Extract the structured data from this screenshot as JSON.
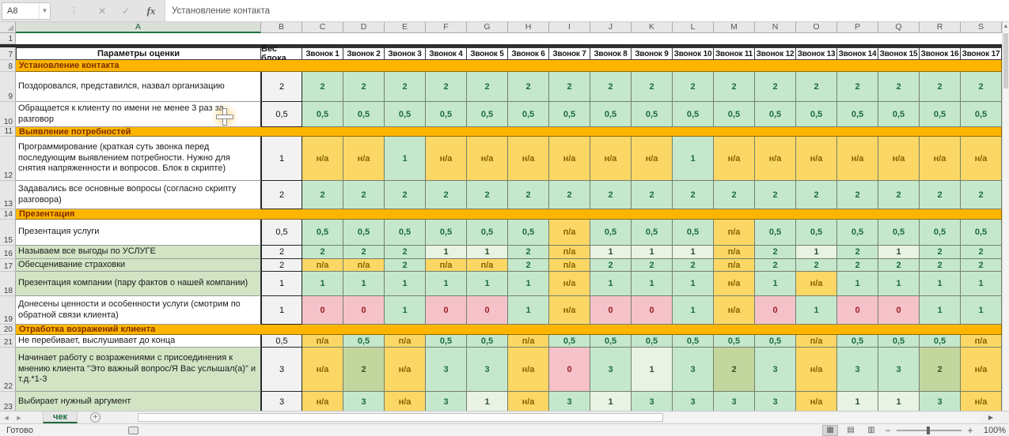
{
  "formula_bar": {
    "name_box": "A8",
    "cancel": "✕",
    "enter": "✓",
    "fx": "fx",
    "formula": "Установление контакта"
  },
  "sheet": {
    "column_letters": [
      "A",
      "B",
      "C",
      "D",
      "E",
      "F",
      "G",
      "H",
      "I",
      "J",
      "K",
      "L",
      "M",
      "N",
      "O",
      "P",
      "Q",
      "R",
      "S"
    ],
    "header": {
      "num": "7",
      "params": "Параметры оценки",
      "weight": "Вес блока",
      "calls": [
        "Звонок 1",
        "Звонок 2",
        "Звонок 3",
        "Звонок 4",
        "Звонок 5",
        "Звонок 6",
        "Звонок 7",
        "Звонок 8",
        "Звонок 9",
        "Звонок 10",
        "Звонок 11",
        "Звонок 12",
        "Звонок 13",
        "Звонок 14",
        "Звонок 15",
        "Звонок 16",
        "Звонок 17"
      ]
    },
    "first_row_num": "1",
    "rows": [
      {
        "num": "8",
        "type": "section",
        "label": "Установление контакта"
      },
      {
        "num": "9",
        "type": "item",
        "label": "Поздоровался, представился, назвал организацию",
        "label_bg": "white",
        "weight": "2",
        "values": [
          [
            "2",
            "g"
          ],
          [
            "2",
            "g"
          ],
          [
            "2",
            "g"
          ],
          [
            "2",
            "g"
          ],
          [
            "2",
            "g"
          ],
          [
            "2",
            "g"
          ],
          [
            "2",
            "g"
          ],
          [
            "2",
            "g"
          ],
          [
            "2",
            "g"
          ],
          [
            "2",
            "g"
          ],
          [
            "2",
            "g"
          ],
          [
            "2",
            "g"
          ],
          [
            "2",
            "g"
          ],
          [
            "2",
            "g"
          ],
          [
            "2",
            "g"
          ],
          [
            "2",
            "g"
          ],
          [
            "2",
            "g"
          ]
        ]
      },
      {
        "num": "10",
        "type": "item",
        "label": "Обращается к клиенту по имени не менее 3 раз  за разговор",
        "label_bg": "white",
        "weight": "0,5",
        "values": [
          [
            "0,5",
            "g"
          ],
          [
            "0,5",
            "g"
          ],
          [
            "0,5",
            "g"
          ],
          [
            "0,5",
            "g"
          ],
          [
            "0,5",
            "g"
          ],
          [
            "0,5",
            "g"
          ],
          [
            "0,5",
            "g"
          ],
          [
            "0,5",
            "g"
          ],
          [
            "0,5",
            "g"
          ],
          [
            "0,5",
            "g"
          ],
          [
            "0,5",
            "g"
          ],
          [
            "0,5",
            "g"
          ],
          [
            "0,5",
            "g"
          ],
          [
            "0,5",
            "g"
          ],
          [
            "0,5",
            "g"
          ],
          [
            "0,5",
            "g"
          ],
          [
            "0,5",
            "g"
          ]
        ]
      },
      {
        "num": "11",
        "type": "section",
        "label": "Выявление потребностей"
      },
      {
        "num": "12",
        "type": "item",
        "label": "Программирование (краткая суть звонка перед последующим выявлением потребности. Нужно для снятия напряженности и вопросов. Блок в скрипте)",
        "label_bg": "white",
        "weight": "1",
        "values": [
          [
            "н/а",
            "y"
          ],
          [
            "н/а",
            "y"
          ],
          [
            "1",
            "g"
          ],
          [
            "н/а",
            "y"
          ],
          [
            "н/а",
            "y"
          ],
          [
            "н/а",
            "y"
          ],
          [
            "н/а",
            "y"
          ],
          [
            "н/а",
            "y"
          ],
          [
            "н/а",
            "y"
          ],
          [
            "1",
            "g"
          ],
          [
            "н/а",
            "y"
          ],
          [
            "н/а",
            "y"
          ],
          [
            "н/а",
            "y"
          ],
          [
            "н/а",
            "y"
          ],
          [
            "н/а",
            "y"
          ],
          [
            "н/а",
            "y"
          ],
          [
            "н/а",
            "y"
          ]
        ]
      },
      {
        "num": "13",
        "type": "item",
        "label": "Задавались все основные вопросы (согласно скрипту разговора)",
        "label_bg": "white",
        "weight": "2",
        "values": [
          [
            "2",
            "g"
          ],
          [
            "2",
            "g"
          ],
          [
            "2",
            "g"
          ],
          [
            "2",
            "g"
          ],
          [
            "2",
            "g"
          ],
          [
            "2",
            "g"
          ],
          [
            "2",
            "g"
          ],
          [
            "2",
            "g"
          ],
          [
            "2",
            "g"
          ],
          [
            "2",
            "g"
          ],
          [
            "2",
            "g"
          ],
          [
            "2",
            "g"
          ],
          [
            "2",
            "g"
          ],
          [
            "2",
            "g"
          ],
          [
            "2",
            "g"
          ],
          [
            "2",
            "g"
          ],
          [
            "2",
            "g"
          ]
        ]
      },
      {
        "num": "14",
        "type": "section",
        "label": "Презентация"
      },
      {
        "num": "15",
        "type": "item",
        "label": "Презентация услуги",
        "label_bg": "white",
        "weight": "0,5",
        "values": [
          [
            "0,5",
            "g"
          ],
          [
            "0,5",
            "g"
          ],
          [
            "0,5",
            "g"
          ],
          [
            "0,5",
            "g"
          ],
          [
            "0,5",
            "g"
          ],
          [
            "0,5",
            "g"
          ],
          [
            "п/а",
            "y"
          ],
          [
            "0,5",
            "g"
          ],
          [
            "0,5",
            "g"
          ],
          [
            "0,5",
            "g"
          ],
          [
            "п/а",
            "y"
          ],
          [
            "0,5",
            "g"
          ],
          [
            "0,5",
            "g"
          ],
          [
            "0,5",
            "g"
          ],
          [
            "0,5",
            "g"
          ],
          [
            "0,5",
            "g"
          ],
          [
            "0,5",
            "g"
          ]
        ]
      },
      {
        "num": "16",
        "type": "item",
        "label": "Называем все выгоды по УСЛУГЕ",
        "label_bg": "green",
        "weight": "2",
        "values": [
          [
            "2",
            "g"
          ],
          [
            "2",
            "g"
          ],
          [
            "2",
            "g"
          ],
          [
            "1",
            "l"
          ],
          [
            "1",
            "l"
          ],
          [
            "2",
            "g"
          ],
          [
            "п/а",
            "y"
          ],
          [
            "1",
            "l"
          ],
          [
            "1",
            "l"
          ],
          [
            "1",
            "l"
          ],
          [
            "п/а",
            "y"
          ],
          [
            "2",
            "g"
          ],
          [
            "1",
            "l"
          ],
          [
            "2",
            "g"
          ],
          [
            "1",
            "l"
          ],
          [
            "2",
            "g"
          ],
          [
            "2",
            "g"
          ]
        ]
      },
      {
        "num": "17",
        "type": "item",
        "label": "Обесценивание страховки",
        "label_bg": "green",
        "weight": "2",
        "values": [
          [
            "п/а",
            "y"
          ],
          [
            "п/а",
            "y"
          ],
          [
            "2",
            "g"
          ],
          [
            "п/а",
            "y"
          ],
          [
            "п/а",
            "y"
          ],
          [
            "2",
            "g"
          ],
          [
            "п/а",
            "y"
          ],
          [
            "2",
            "g"
          ],
          [
            "2",
            "g"
          ],
          [
            "2",
            "g"
          ],
          [
            "п/а",
            "y"
          ],
          [
            "2",
            "g"
          ],
          [
            "2",
            "g"
          ],
          [
            "2",
            "g"
          ],
          [
            "2",
            "g"
          ],
          [
            "2",
            "g"
          ],
          [
            "2",
            "g"
          ]
        ]
      },
      {
        "num": "18",
        "type": "item",
        "label": "Презентация компании (пару фактов о нашей компании)",
        "label_bg": "green",
        "weight": "1",
        "values": [
          [
            "1",
            "g"
          ],
          [
            "1",
            "g"
          ],
          [
            "1",
            "g"
          ],
          [
            "1",
            "g"
          ],
          [
            "1",
            "g"
          ],
          [
            "1",
            "g"
          ],
          [
            "н/а",
            "y"
          ],
          [
            "1",
            "g"
          ],
          [
            "1",
            "g"
          ],
          [
            "1",
            "g"
          ],
          [
            "н/а",
            "y"
          ],
          [
            "1",
            "g"
          ],
          [
            "н/а",
            "y"
          ],
          [
            "1",
            "g"
          ],
          [
            "1",
            "g"
          ],
          [
            "1",
            "g"
          ],
          [
            "1",
            "g"
          ]
        ]
      },
      {
        "num": "19",
        "type": "item",
        "label": "Донесены ценности и особенности услуги (смотрим по обратной связи клиента)",
        "label_bg": "white",
        "weight": "1",
        "values": [
          [
            "0",
            "p"
          ],
          [
            "0",
            "p"
          ],
          [
            "1",
            "g"
          ],
          [
            "0",
            "p"
          ],
          [
            "0",
            "p"
          ],
          [
            "1",
            "g"
          ],
          [
            "н/а",
            "y"
          ],
          [
            "0",
            "p"
          ],
          [
            "0",
            "p"
          ],
          [
            "1",
            "g"
          ],
          [
            "н/а",
            "y"
          ],
          [
            "0",
            "p"
          ],
          [
            "1",
            "g"
          ],
          [
            "0",
            "p"
          ],
          [
            "0",
            "p"
          ],
          [
            "1",
            "g"
          ],
          [
            "1",
            "g"
          ]
        ]
      },
      {
        "num": "20",
        "type": "section",
        "label": "Отработка возражений клиента"
      },
      {
        "num": "21",
        "type": "item",
        "label": "Не перебивает, выслушивает до конца",
        "label_bg": "white",
        "weight": "0,5",
        "values": [
          [
            "п/а",
            "y"
          ],
          [
            "0,5",
            "g"
          ],
          [
            "п/а",
            "y"
          ],
          [
            "0,5",
            "g"
          ],
          [
            "0,5",
            "g"
          ],
          [
            "п/а",
            "y"
          ],
          [
            "0,5",
            "g"
          ],
          [
            "0,5",
            "g"
          ],
          [
            "0,5",
            "g"
          ],
          [
            "0,5",
            "g"
          ],
          [
            "0,5",
            "g"
          ],
          [
            "0,5",
            "g"
          ],
          [
            "п/а",
            "y"
          ],
          [
            "0,5",
            "g"
          ],
          [
            "0,5",
            "g"
          ],
          [
            "0,5",
            "g"
          ],
          [
            "п/а",
            "y"
          ]
        ]
      },
      {
        "num": "22",
        "type": "item",
        "label": "Начинает работу с возражениями с присоединения  к мнению клиента \"Это важный вопрос/Я Вас услышал(а)\" и т.д.*1-3",
        "label_bg": "green",
        "weight": "3",
        "values": [
          [
            "н/а",
            "y"
          ],
          [
            "2",
            "o"
          ],
          [
            "н/а",
            "y"
          ],
          [
            "3",
            "g"
          ],
          [
            "3",
            "g"
          ],
          [
            "н/а",
            "y"
          ],
          [
            "0",
            "p"
          ],
          [
            "3",
            "g"
          ],
          [
            "1",
            "l"
          ],
          [
            "3",
            "g"
          ],
          [
            "2",
            "o"
          ],
          [
            "3",
            "g"
          ],
          [
            "н/а",
            "y"
          ],
          [
            "3",
            "g"
          ],
          [
            "3",
            "g"
          ],
          [
            "2",
            "o"
          ],
          [
            "н/а",
            "y"
          ]
        ]
      },
      {
        "num": "23",
        "type": "item",
        "label": "Выбирает нужный аргумент",
        "label_bg": "green",
        "weight": "3",
        "values": [
          [
            "н/а",
            "y"
          ],
          [
            "3",
            "g"
          ],
          [
            "н/а",
            "y"
          ],
          [
            "3",
            "g"
          ],
          [
            "1",
            "l"
          ],
          [
            "н/а",
            "y"
          ],
          [
            "3",
            "g"
          ],
          [
            "1",
            "l"
          ],
          [
            "3",
            "g"
          ],
          [
            "3",
            "g"
          ],
          [
            "3",
            "g"
          ],
          [
            "3",
            "g"
          ],
          [
            "н/а",
            "y"
          ],
          [
            "1",
            "l"
          ],
          [
            "1",
            "l"
          ],
          [
            "3",
            "g"
          ],
          [
            "н/а",
            "y"
          ]
        ]
      }
    ]
  },
  "tabs": {
    "active": "чек",
    "add": "+",
    "nav_left": "◄",
    "nav_right": "►"
  },
  "status": {
    "ready": "Готово",
    "zoom": "100%"
  },
  "colors": {
    "accent_green": "#217346",
    "section_orange": "#feb500",
    "cell_good": "#c5e8cd",
    "cell_neutral": "#fbd765",
    "cell_bad": "#f5c2c9"
  }
}
